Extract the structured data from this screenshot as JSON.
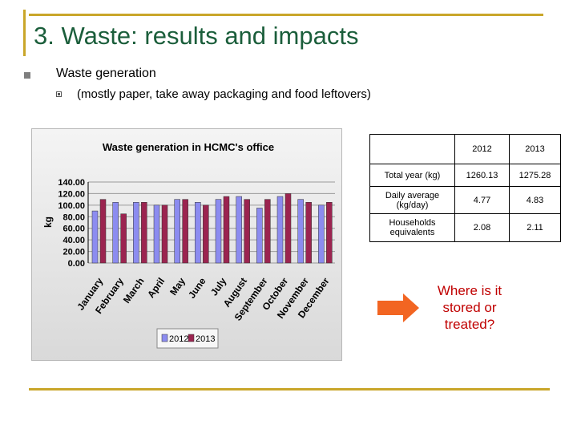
{
  "title": "3. Waste: results and impacts",
  "bullets": {
    "level1": "Waste generation",
    "level2": "(mostly paper, take away packaging and food leftovers)"
  },
  "chart_data": {
    "type": "bar",
    "title": "Waste generation in HCMC's office",
    "xlabel": "",
    "ylabel": "kg",
    "ylim": [
      0,
      140
    ],
    "yticks": [
      "0.00",
      "20.00",
      "40.00",
      "60.00",
      "80.00",
      "100.00",
      "120.00",
      "140.00"
    ],
    "grid": true,
    "legend": "bottom",
    "categories": [
      "January",
      "February",
      "March",
      "April",
      "May",
      "June",
      "July",
      "August",
      "September",
      "October",
      "November",
      "December"
    ],
    "series": [
      {
        "name": "2012",
        "color": "#8c8cf0",
        "values": [
          90,
          105,
          105,
          100,
          110,
          105,
          110,
          115,
          95,
          115,
          110,
          100
        ]
      },
      {
        "name": "2013",
        "color": "#9b2450",
        "values": [
          110,
          85,
          105,
          100,
          110,
          100,
          115,
          110,
          110,
          120,
          105,
          105
        ]
      }
    ]
  },
  "table": {
    "headers": [
      "",
      "2012",
      "2013"
    ],
    "rows": [
      {
        "label": "Total year (kg)",
        "v2012": "1260.13",
        "v2013": "1275.28"
      },
      {
        "label": "Daily average (kg/day)",
        "v2012": "4.77",
        "v2013": "4.83"
      },
      {
        "label": "Households equivalents",
        "v2012": "2.08",
        "v2013": "2.11"
      }
    ]
  },
  "callout": {
    "text": "Where is it\nstored or\ntreated?",
    "color": "#c00000",
    "arrow_color": "#f26522"
  }
}
